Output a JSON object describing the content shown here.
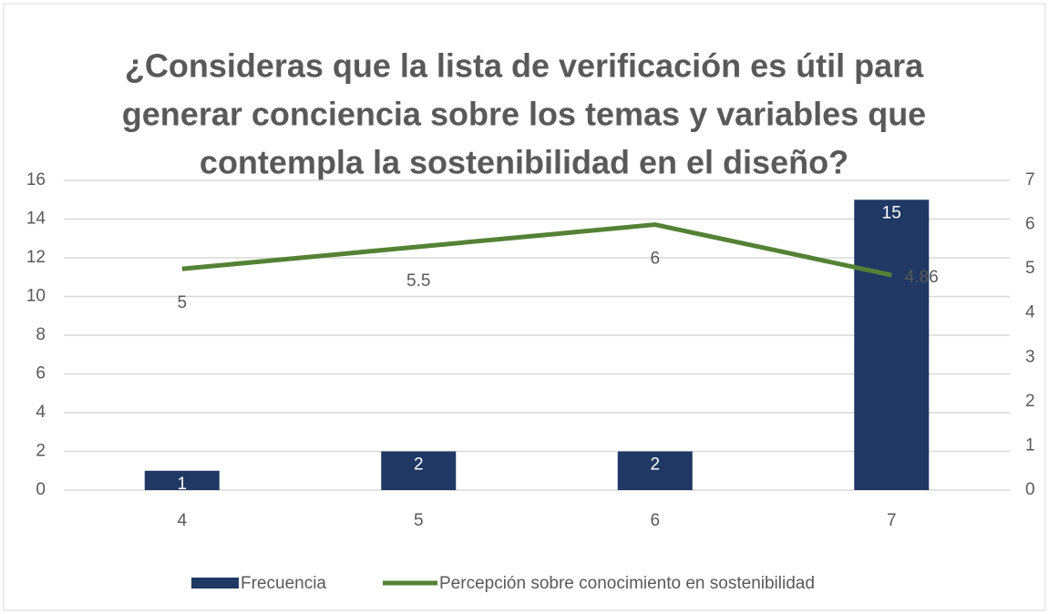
{
  "chart_data": {
    "type": "bar_line",
    "title": [
      "¿Consideras que la lista de verificación es útil para",
      "generar conciencia sobre los temas y variables que",
      "contempla la sostenibilidad en el diseño?"
    ],
    "categories": [
      "4",
      "5",
      "6",
      "7"
    ],
    "series": [
      {
        "name": "Frecuencia",
        "type": "bar",
        "color": "#203864",
        "values": [
          1,
          2,
          2,
          15
        ]
      },
      {
        "name": "Percepción sobre conocimiento en sostenibilidad",
        "type": "line",
        "axis": "y2",
        "color": "#548235",
        "values": [
          5,
          5.5,
          6,
          4.86
        ]
      }
    ],
    "ylim": [
      0,
      16
    ],
    "yticks": [
      0,
      2,
      4,
      6,
      8,
      10,
      12,
      14,
      16
    ],
    "y2lim": [
      0,
      7
    ],
    "y2ticks": [
      0,
      1,
      2,
      3,
      4,
      5,
      6,
      7
    ],
    "grid": true,
    "legend": "bottom"
  }
}
